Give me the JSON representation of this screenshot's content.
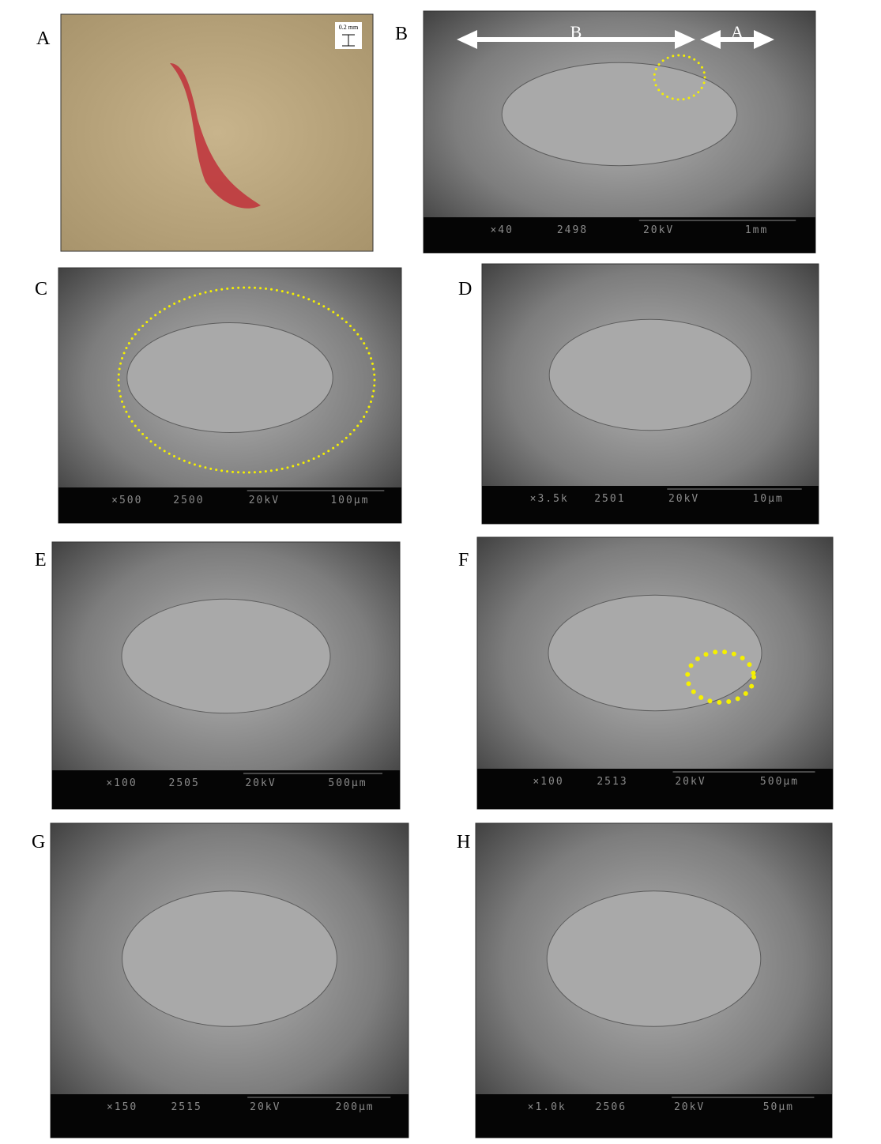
{
  "panels": [
    {
      "label": "A",
      "scale": "0.2 mm"
    },
    {
      "label": "B",
      "arrows": [
        "B",
        "A"
      ],
      "info": [
        "×40",
        "2498",
        "20kV",
        "1mm"
      ]
    },
    {
      "label": "C",
      "info": [
        "×500",
        "2500",
        "20kV",
        "100µm"
      ]
    },
    {
      "label": "D",
      "info": [
        "×3.5k",
        "2501",
        "20kV",
        "10µm"
      ]
    },
    {
      "label": "E",
      "info": [
        "×100",
        "2505",
        "20kV",
        "500µm"
      ]
    },
    {
      "label": "F",
      "info": [
        "×100",
        "2513",
        "20kV",
        "500µm"
      ]
    },
    {
      "label": "G",
      "info": [
        "×150",
        "2515",
        "20kV",
        "200µm"
      ]
    },
    {
      "label": "H",
      "info": [
        "×1.0k",
        "2506",
        "20kV",
        "50µm"
      ]
    }
  ]
}
